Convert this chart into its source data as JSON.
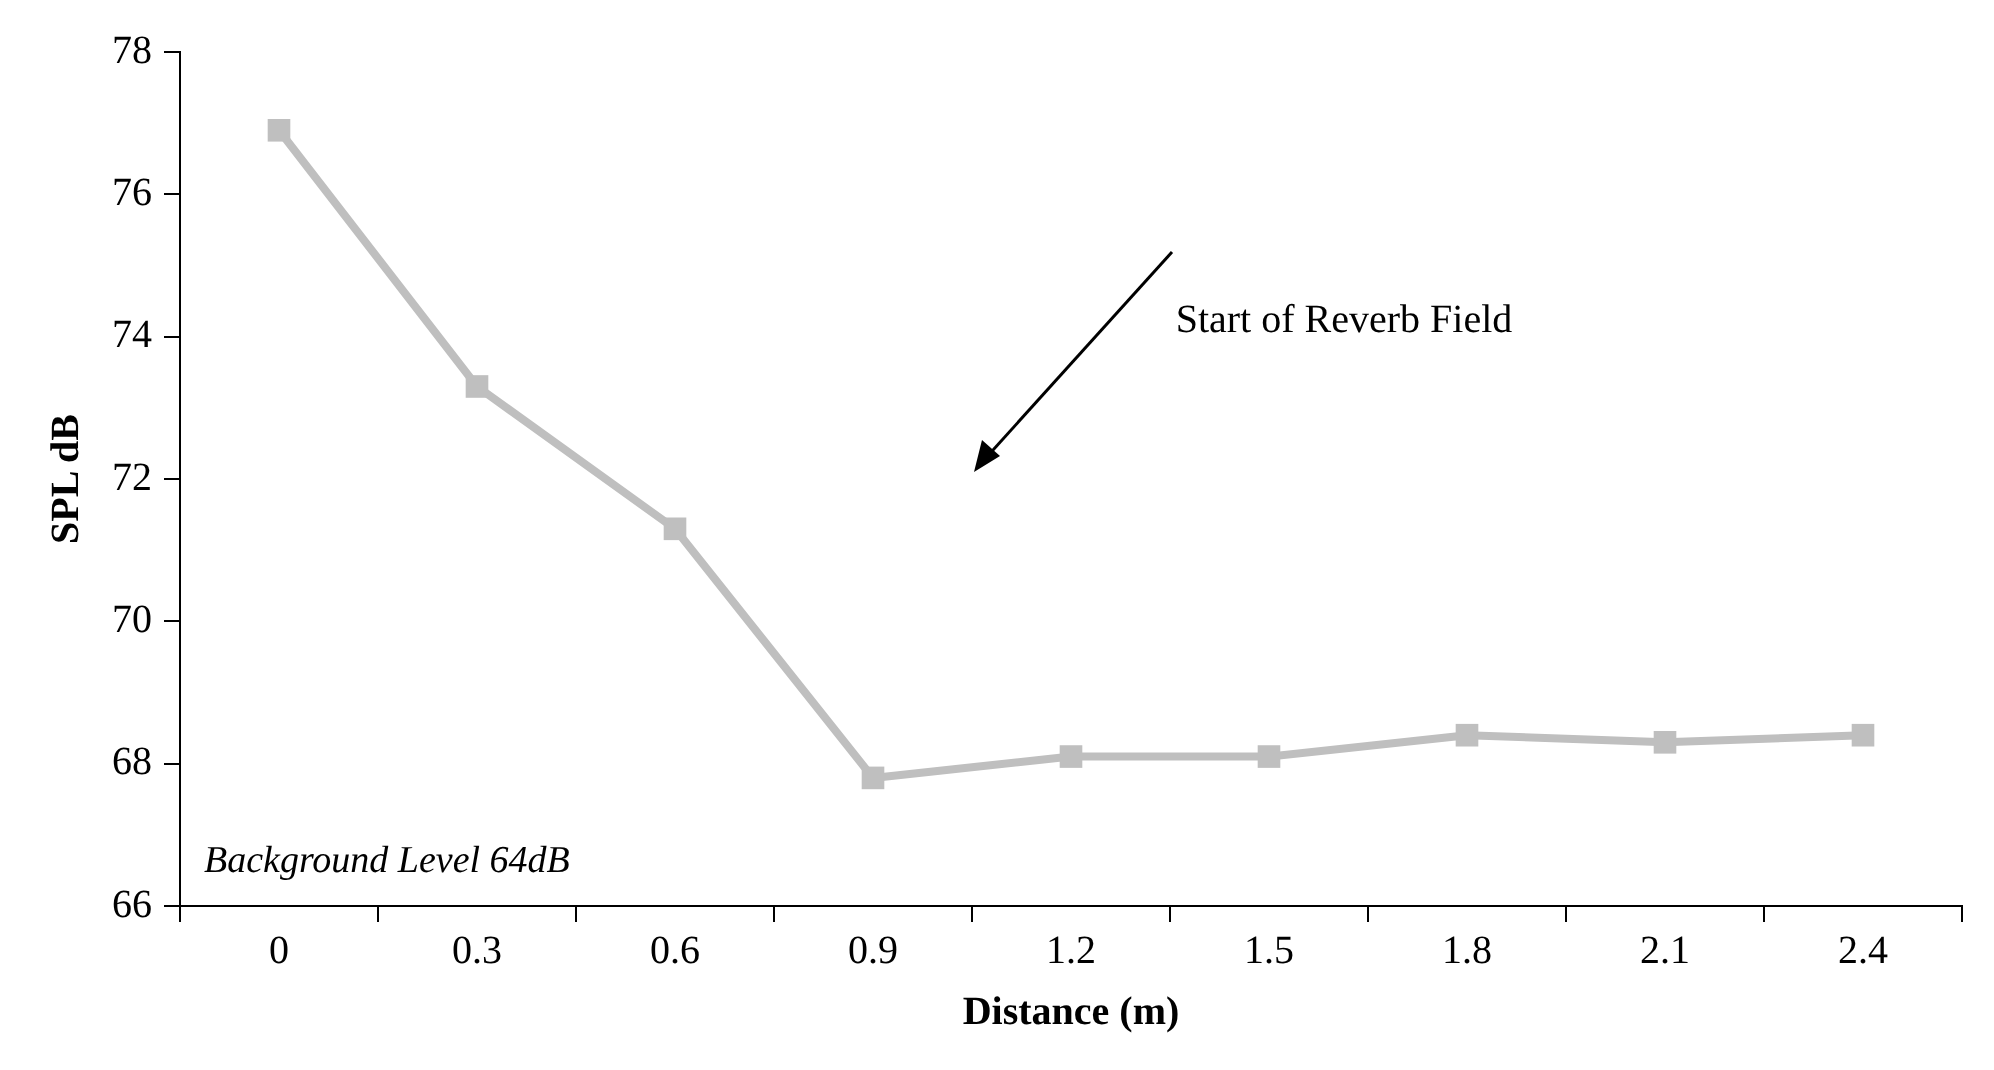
{
  "chart_data": {
    "type": "line",
    "xlabel": "Distance (m)",
    "ylabel": "SPL dB",
    "categories": [
      "0",
      "0.3",
      "0.6",
      "0.9",
      "1.2",
      "1.5",
      "1.8",
      "2.1",
      "2.4"
    ],
    "series": [
      {
        "color": "#bfbfbf",
        "values": [
          76.9,
          73.3,
          71.3,
          67.8,
          68.1,
          68.1,
          68.4,
          68.3,
          68.4
        ]
      }
    ],
    "ylim": [
      66,
      78
    ],
    "yticks": [
      66,
      68,
      70,
      72,
      74,
      76,
      78
    ],
    "marker": "square",
    "line_style": "solid",
    "legend": false,
    "annotations": [
      "Start of Reverb Field",
      "Background Level 64dB"
    ]
  }
}
